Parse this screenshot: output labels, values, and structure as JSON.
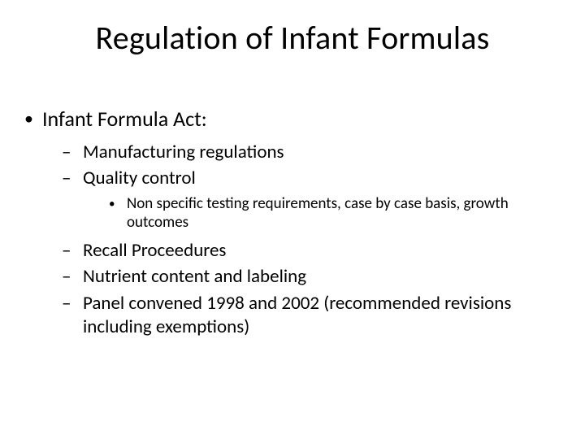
{
  "slide": {
    "title": "Regulation of Infant Formulas",
    "title_fontsize": 40,
    "background_color": "#ffffff",
    "text_color": "#000000",
    "font_family": "Calibri",
    "bullets": {
      "lvl1": [
        {
          "text": "Infant Formula Act:",
          "lvl2": [
            {
              "text": "Manufacturing regulations"
            },
            {
              "text": "Quality control",
              "lvl3": [
                {
                  "text": "Non specific testing requirements, case by case basis, growth outcomes"
                }
              ]
            },
            {
              "text": "Recall Proceedures"
            },
            {
              "text": "Nutrient content and labeling"
            },
            {
              "text": "Panel convened 1998 and 2002 (recommended revisions including exemptions)"
            }
          ]
        }
      ]
    },
    "bullet_markers": {
      "lvl1": "•",
      "lvl2": "–",
      "lvl3": "•"
    },
    "font_sizes": {
      "lvl1": 26,
      "lvl2": 23,
      "lvl3": 19
    }
  }
}
